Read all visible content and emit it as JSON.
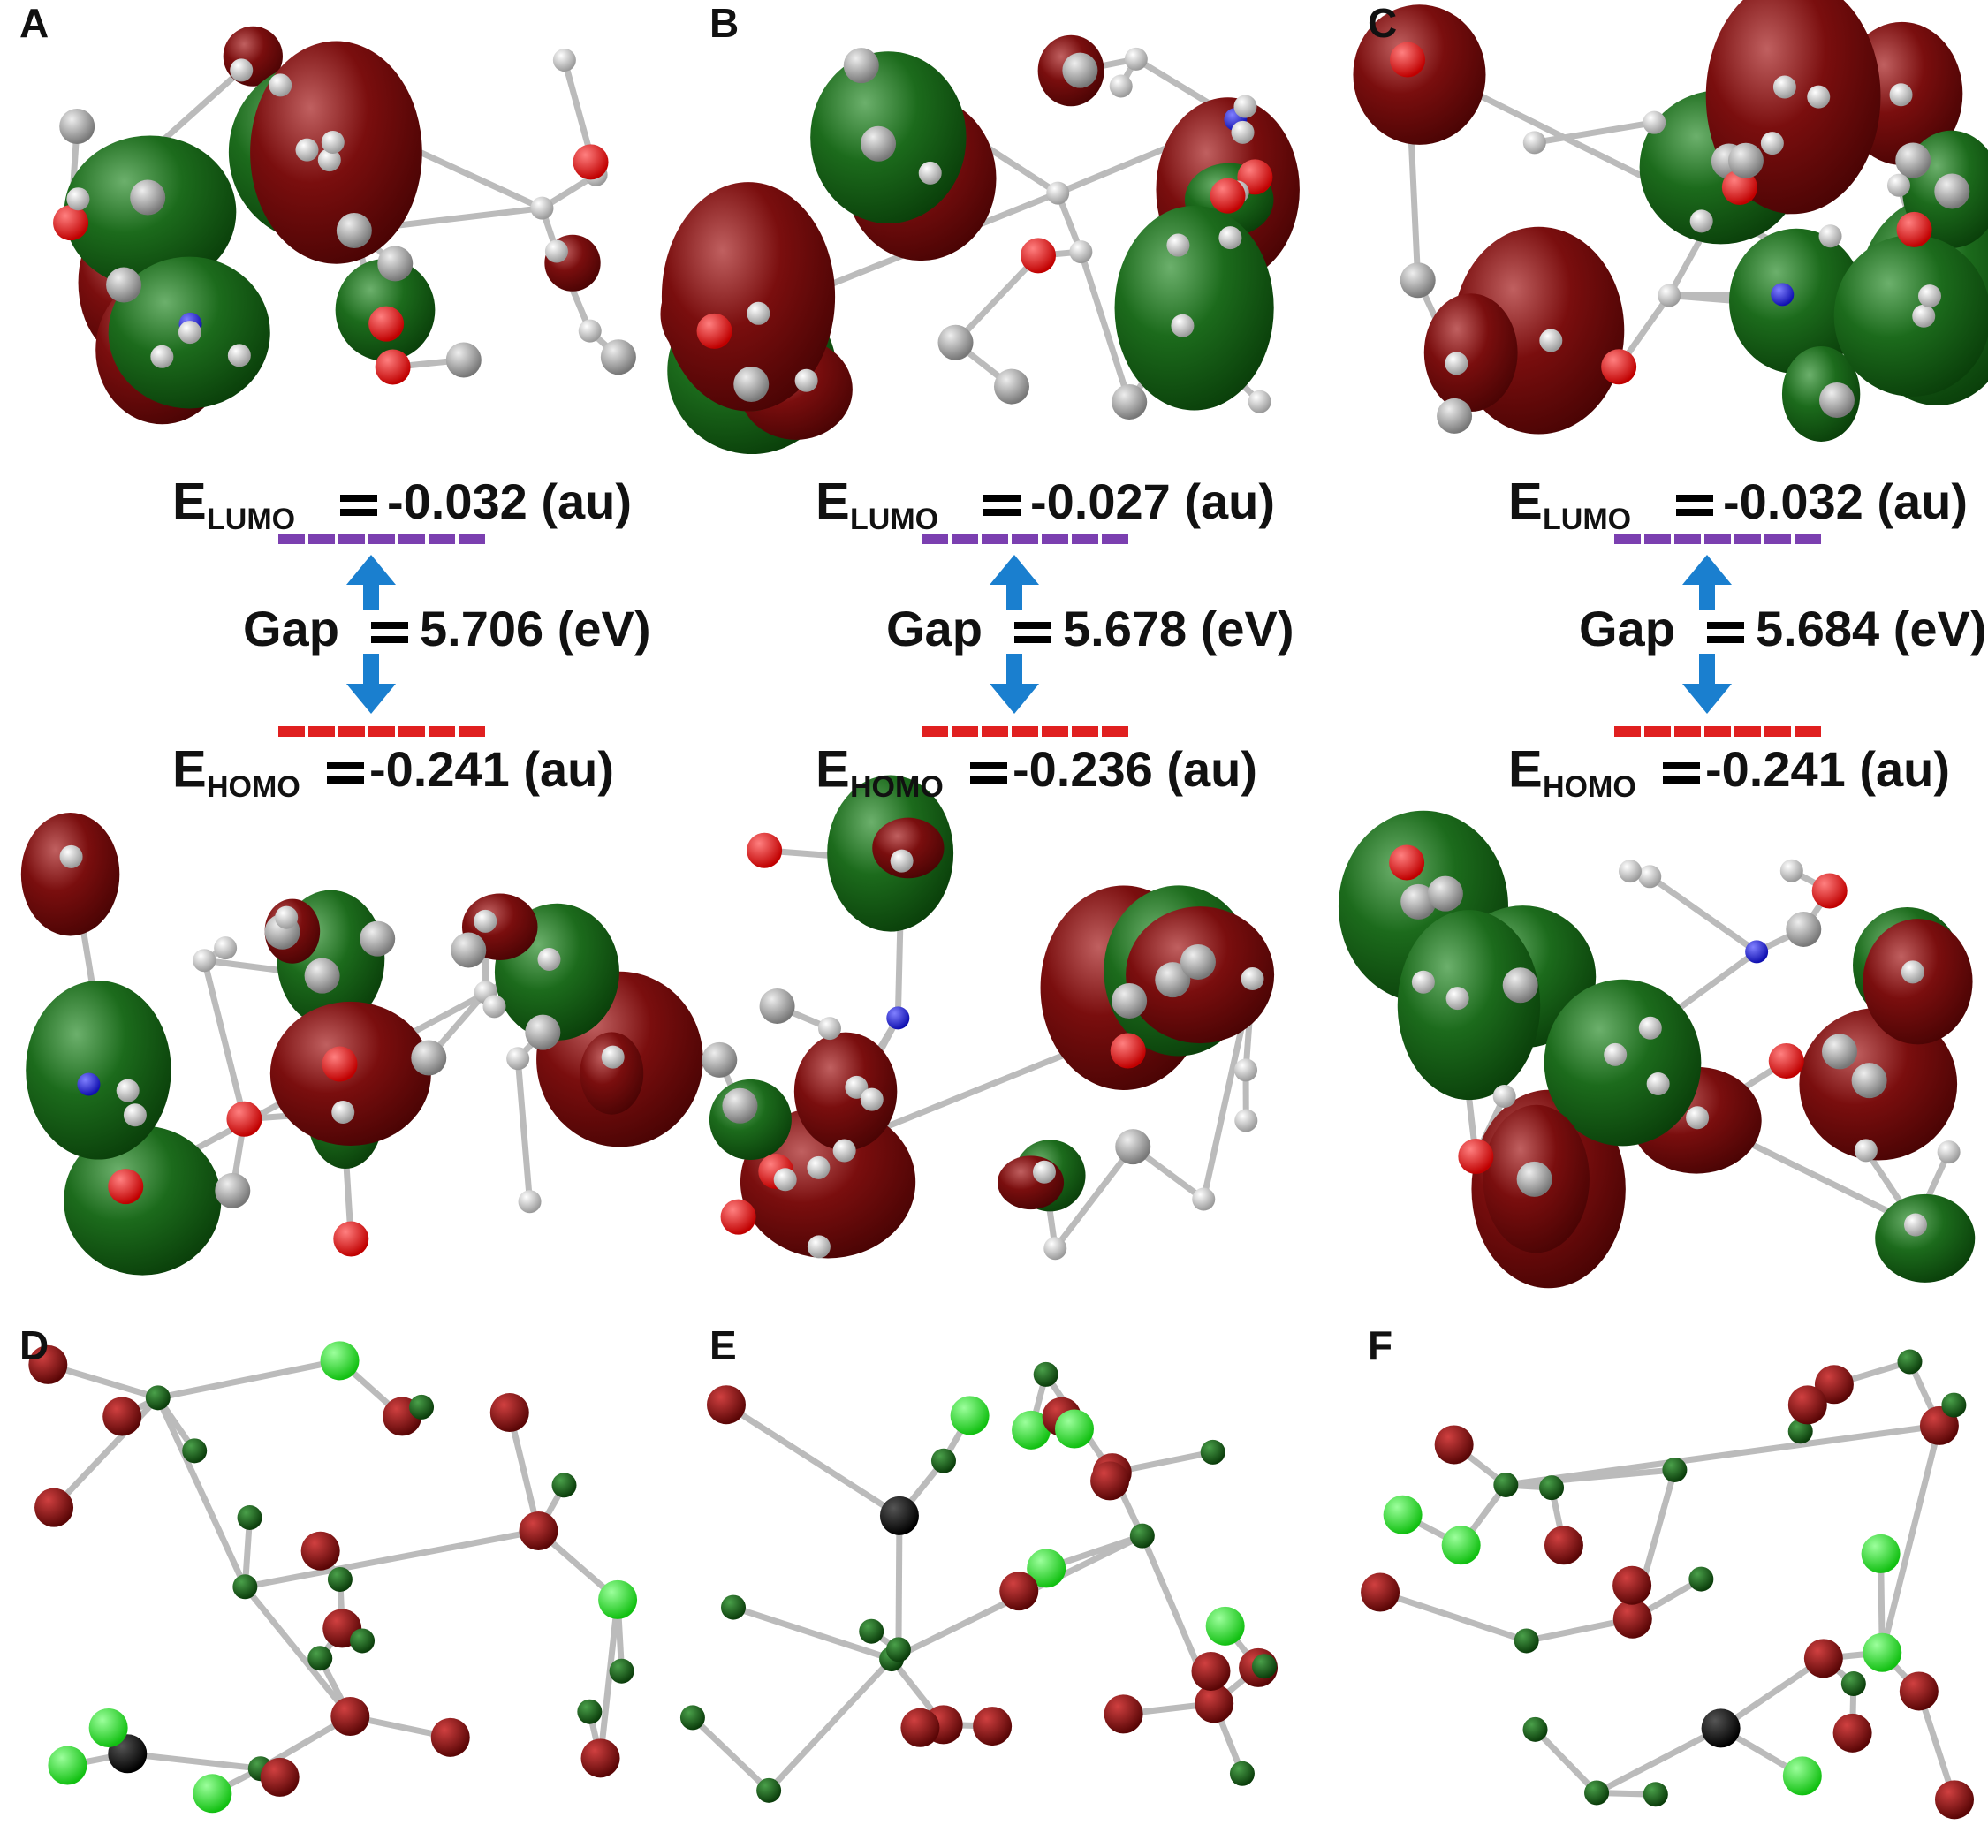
{
  "terms": {
    "e": "E",
    "lumo": "LUMO",
    "homo": "HOMO",
    "gap": "Gap"
  },
  "panels": [
    {
      "label": "A",
      "lumo": "-0.032 (au)",
      "gap": "5.706 (eV)",
      "homo": "-0.241 (au)"
    },
    {
      "label": "B",
      "lumo": "-0.027 (au)",
      "gap": "5.678 (eV)",
      "homo": "-0.236 (au)"
    },
    {
      "label": "C",
      "lumo": "-0.032 (au)",
      "gap": "5.684 (eV)",
      "homo": "-0.241 (au)"
    },
    {
      "label": "D"
    },
    {
      "label": "E"
    },
    {
      "label": "F"
    }
  ]
}
